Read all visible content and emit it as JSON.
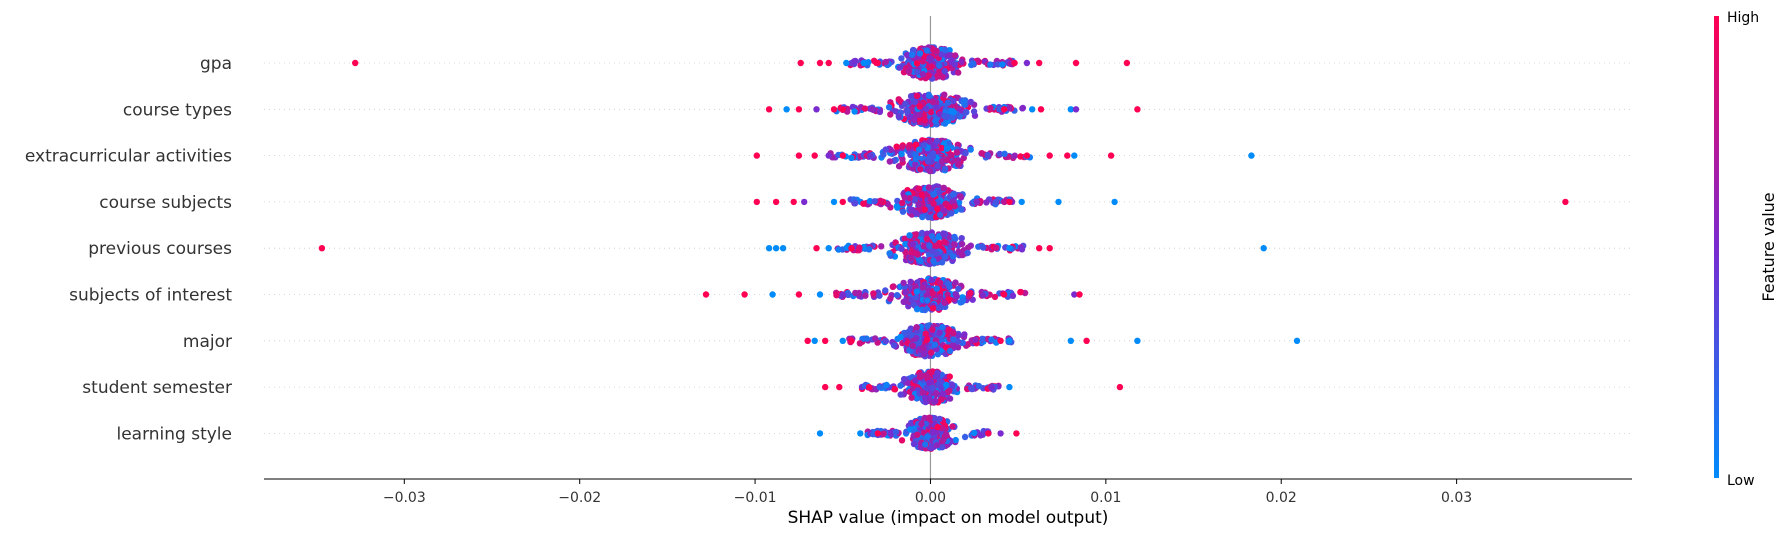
{
  "chart_data": {
    "type": "scatter",
    "subtype": "shap-beeswarm",
    "title": "",
    "xlabel": "SHAP value (impact on model output)",
    "xlim": [
      -0.038,
      0.04
    ],
    "xticks": [
      -0.03,
      -0.02,
      -0.01,
      0.0,
      0.01,
      0.02,
      0.03
    ],
    "xtick_labels": [
      "−0.03",
      "−0.02",
      "−0.01",
      "0.00",
      "0.01",
      "0.02",
      "0.03"
    ],
    "zero_line": 0.0,
    "grid": "horizontal dotted per feature",
    "colorbar": {
      "title": "Feature value",
      "high_label": "High",
      "low_label": "Low",
      "high_color": "#ff0052",
      "low_color": "#008bfb"
    },
    "features": [
      {
        "name": "gpa",
        "spread": 0.0026,
        "outliers": [
          [
            -0.0328,
            1
          ],
          [
            -0.0074,
            1
          ],
          [
            -0.0063,
            1
          ],
          [
            -0.0058,
            1
          ],
          [
            -0.0048,
            0
          ],
          [
            -0.0038,
            0
          ],
          [
            -0.003,
            1
          ],
          [
            0.0048,
            1
          ],
          [
            0.0055,
            0.5
          ],
          [
            0.0062,
            1
          ],
          [
            0.0083,
            1
          ],
          [
            0.0112,
            1
          ]
        ]
      },
      {
        "name": "course types",
        "spread": 0.003,
        "outliers": [
          [
            -0.0092,
            1
          ],
          [
            -0.0082,
            0
          ],
          [
            -0.0075,
            1
          ],
          [
            -0.0065,
            0.5
          ],
          [
            -0.0055,
            1
          ],
          [
            -0.005,
            1
          ],
          [
            0.0042,
            1
          ],
          [
            0.0058,
            0
          ],
          [
            0.0063,
            1
          ],
          [
            0.008,
            0
          ],
          [
            0.0083,
            0.5
          ],
          [
            0.0118,
            1
          ]
        ]
      },
      {
        "name": "extracurricular activities",
        "spread": 0.0032,
        "outliers": [
          [
            -0.0099,
            1
          ],
          [
            -0.0075,
            1
          ],
          [
            -0.0066,
            1
          ],
          [
            -0.0058,
            0.5
          ],
          [
            -0.005,
            1
          ],
          [
            0.0055,
            1
          ],
          [
            0.0068,
            1
          ],
          [
            0.0078,
            1
          ],
          [
            0.0082,
            0
          ],
          [
            0.0103,
            1
          ],
          [
            0.0183,
            0
          ]
        ]
      },
      {
        "name": "course subjects",
        "spread": 0.0026,
        "outliers": [
          [
            -0.0099,
            1
          ],
          [
            -0.0088,
            1
          ],
          [
            -0.0078,
            1
          ],
          [
            -0.0072,
            0.5
          ],
          [
            -0.0055,
            0
          ],
          [
            -0.005,
            1
          ],
          [
            0.0045,
            1
          ],
          [
            0.0052,
            0
          ],
          [
            0.0073,
            0
          ],
          [
            0.0105,
            0
          ],
          [
            0.0362,
            1
          ]
        ]
      },
      {
        "name": "previous courses",
        "spread": 0.003,
        "outliers": [
          [
            -0.0347,
            1
          ],
          [
            -0.0092,
            0
          ],
          [
            -0.0088,
            0
          ],
          [
            -0.0084,
            0
          ],
          [
            -0.0065,
            1
          ],
          [
            -0.0058,
            0
          ],
          [
            -0.0045,
            1
          ],
          [
            0.0045,
            0
          ],
          [
            0.0062,
            1
          ],
          [
            0.0068,
            1
          ],
          [
            0.019,
            0
          ]
        ]
      },
      {
        "name": "subjects of interest",
        "spread": 0.003,
        "outliers": [
          [
            -0.0128,
            1
          ],
          [
            -0.0106,
            1
          ],
          [
            -0.009,
            0
          ],
          [
            -0.0075,
            1
          ],
          [
            -0.0063,
            0
          ],
          [
            -0.005,
            0.5
          ],
          [
            0.0042,
            1
          ],
          [
            0.0082,
            0.5
          ],
          [
            0.0085,
            1
          ]
        ]
      },
      {
        "name": "major",
        "spread": 0.0026,
        "outliers": [
          [
            -0.007,
            1
          ],
          [
            -0.0066,
            0
          ],
          [
            -0.006,
            1
          ],
          [
            -0.005,
            0
          ],
          [
            -0.0045,
            1
          ],
          [
            0.004,
            1
          ],
          [
            0.0045,
            0
          ],
          [
            0.008,
            0
          ],
          [
            0.0089,
            1
          ],
          [
            0.0118,
            0
          ],
          [
            0.0209,
            0
          ]
        ]
      },
      {
        "name": "student semester",
        "spread": 0.0022,
        "outliers": [
          [
            -0.006,
            1
          ],
          [
            -0.0052,
            1
          ],
          [
            -0.0035,
            1
          ],
          [
            0.0035,
            0.5
          ],
          [
            0.0045,
            0
          ],
          [
            0.0108,
            1
          ]
        ]
      },
      {
        "name": "learning style",
        "spread": 0.002,
        "outliers": [
          [
            -0.0063,
            0
          ],
          [
            -0.004,
            0
          ],
          [
            -0.003,
            1
          ],
          [
            0.0033,
            1
          ],
          [
            0.004,
            0.5
          ],
          [
            0.0049,
            1
          ]
        ]
      }
    ]
  }
}
